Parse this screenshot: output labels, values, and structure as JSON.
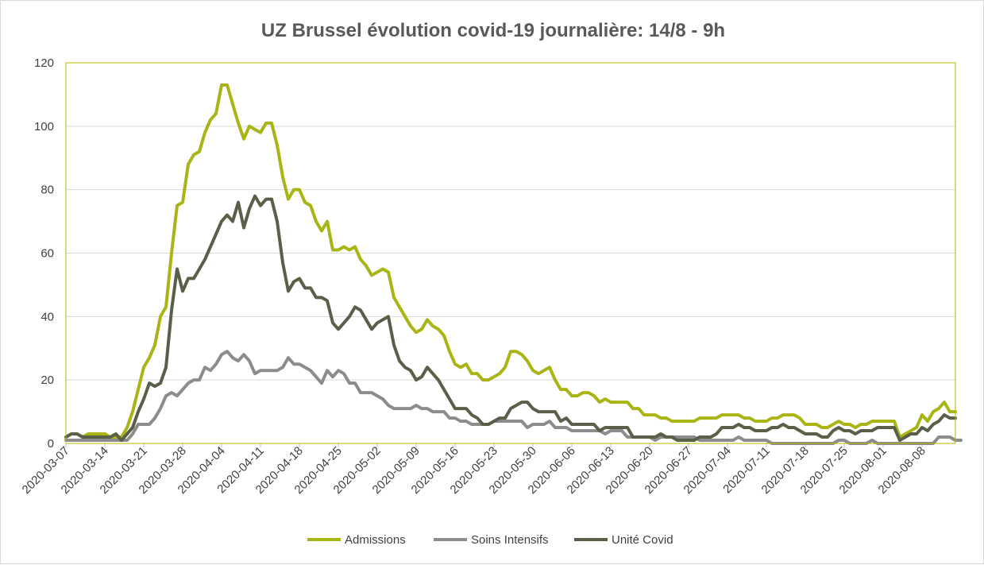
{
  "chart_data": {
    "type": "line",
    "title": "UZ Brussel évolution covid-19 journalière: 14/8 - 9h",
    "xlabel": "",
    "ylabel": "",
    "ylim": [
      0,
      120
    ],
    "yticks": [
      0,
      20,
      40,
      60,
      80,
      100,
      120
    ],
    "x_start": "2020-03-07",
    "x_end": "2020-08-14",
    "x_tick_labels": [
      "2020-03-07",
      "2020-03-14",
      "2020-03-21",
      "2020-03-28",
      "2020-04-04",
      "2020-04-11",
      "2020-04-18",
      "2020-04-25",
      "2020-05-02",
      "2020-05-09",
      "2020-05-16",
      "2020-05-23",
      "2020-05-30",
      "2020-06-06",
      "2020-06-13",
      "2020-06-20",
      "2020-06-27",
      "2020-07-04",
      "2020-07-11",
      "2020-07-18",
      "2020-07-25",
      "2020-08-01",
      "2020-08-08"
    ],
    "grid": true,
    "legend_position": "bottom",
    "series": [
      {
        "name": "Admissions",
        "color": "#a9b514",
        "values": [
          2,
          3,
          3,
          2,
          3,
          3,
          3,
          3,
          2,
          2,
          2,
          5,
          10,
          17,
          24,
          27,
          31,
          40,
          43,
          60,
          75,
          76,
          88,
          91,
          92,
          98,
          102,
          104,
          113,
          113,
          107,
          101,
          96,
          100,
          99,
          98,
          101,
          101,
          94,
          84,
          77,
          80,
          80,
          76,
          75,
          70,
          67,
          70,
          61,
          61,
          62,
          61,
          62,
          58,
          56,
          53,
          54,
          55,
          54,
          46,
          43,
          40,
          37,
          35,
          36,
          39,
          37,
          36,
          34,
          29,
          25,
          24,
          25,
          22,
          22,
          20,
          20,
          21,
          22,
          24,
          29,
          29,
          28,
          26,
          23,
          22,
          23,
          24,
          20,
          17,
          17,
          15,
          15,
          16,
          16,
          15,
          13,
          14,
          13,
          13,
          13,
          13,
          11,
          11,
          9,
          9,
          9,
          8,
          8,
          7,
          7,
          7,
          7,
          7,
          8,
          8,
          8,
          8,
          9,
          9,
          9,
          9,
          8,
          8,
          7,
          7,
          7,
          8,
          8,
          9,
          9,
          9,
          8,
          6,
          6,
          6,
          5,
          5,
          6,
          7,
          6,
          6,
          5,
          6,
          6,
          7,
          7,
          7,
          7,
          7,
          2,
          3,
          4,
          5,
          9,
          7,
          10,
          11,
          13,
          10,
          10
        ]
      },
      {
        "name": "Soins Intensifs",
        "color": "#8c8c8c",
        "values": [
          1,
          1,
          1,
          1,
          1,
          1,
          1,
          1,
          1,
          1,
          1,
          1,
          3,
          6,
          6,
          6,
          8,
          11,
          15,
          16,
          15,
          17,
          19,
          20,
          20,
          24,
          23,
          25,
          28,
          29,
          27,
          26,
          28,
          26,
          22,
          23,
          23,
          23,
          23,
          24,
          27,
          25,
          25,
          24,
          23,
          21,
          19,
          23,
          21,
          23,
          22,
          19,
          19,
          16,
          16,
          16,
          15,
          14,
          12,
          11,
          11,
          11,
          11,
          12,
          11,
          11,
          10,
          10,
          10,
          8,
          8,
          7,
          7,
          6,
          6,
          6,
          6,
          7,
          7,
          7,
          7,
          7,
          7,
          5,
          6,
          6,
          6,
          7,
          5,
          5,
          5,
          4,
          4,
          4,
          4,
          4,
          4,
          3,
          4,
          4,
          4,
          2,
          2,
          2,
          2,
          2,
          1,
          2,
          2,
          2,
          2,
          2,
          2,
          2,
          1,
          1,
          1,
          1,
          1,
          1,
          1,
          2,
          1,
          1,
          1,
          1,
          1,
          0,
          0,
          0,
          0,
          0,
          0,
          0,
          0,
          0,
          0,
          0,
          0,
          1,
          1,
          0,
          0,
          0,
          0,
          1,
          0,
          0,
          0,
          0,
          0,
          0,
          0,
          0,
          0,
          0,
          0,
          2,
          2,
          2,
          1,
          1
        ]
      },
      {
        "name": "Unité Covid",
        "color": "#595f48",
        "values": [
          2,
          3,
          3,
          2,
          2,
          2,
          2,
          2,
          2,
          3,
          1,
          3,
          5,
          10,
          14,
          19,
          18,
          19,
          24,
          42,
          55,
          48,
          52,
          52,
          55,
          58,
          62,
          66,
          70,
          72,
          70,
          76,
          68,
          74,
          78,
          75,
          77,
          77,
          70,
          57,
          48,
          51,
          52,
          49,
          49,
          46,
          46,
          45,
          38,
          36,
          38,
          40,
          43,
          42,
          39,
          36,
          38,
          39,
          40,
          31,
          26,
          24,
          23,
          20,
          21,
          24,
          22,
          20,
          17,
          14,
          11,
          11,
          11,
          9,
          8,
          6,
          6,
          7,
          8,
          8,
          11,
          12,
          13,
          13,
          11,
          10,
          10,
          10,
          10,
          7,
          8,
          6,
          6,
          6,
          6,
          6,
          4,
          5,
          5,
          5,
          5,
          5,
          2,
          2,
          2,
          2,
          2,
          3,
          2,
          2,
          1,
          1,
          1,
          1,
          2,
          2,
          2,
          3,
          5,
          5,
          5,
          6,
          5,
          5,
          4,
          4,
          4,
          5,
          5,
          6,
          5,
          5,
          4,
          3,
          3,
          3,
          2,
          2,
          4,
          5,
          4,
          4,
          3,
          4,
          4,
          4,
          5,
          5,
          5,
          5,
          1,
          2,
          3,
          3,
          5,
          4,
          6,
          7,
          9,
          8,
          8
        ]
      }
    ]
  }
}
